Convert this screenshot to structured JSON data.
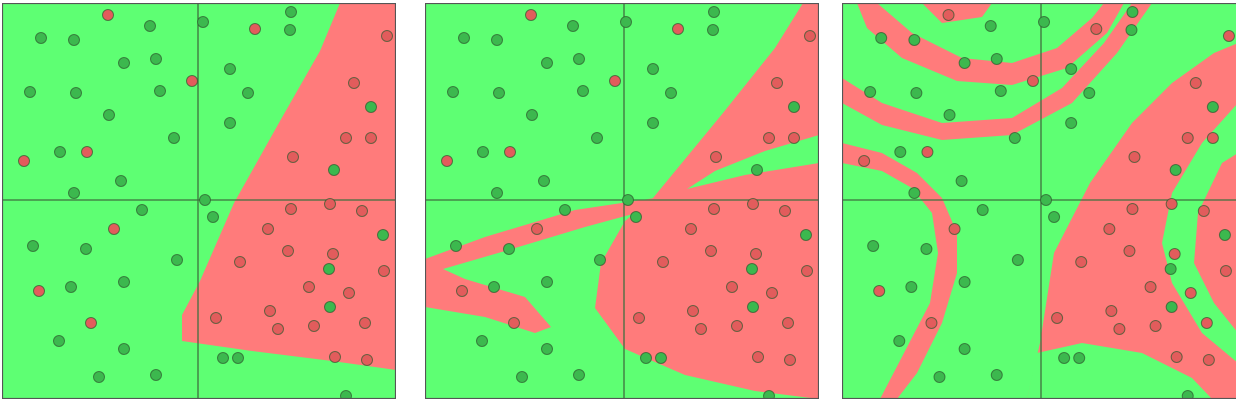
{
  "chart_data": [
    {
      "type": "scatter",
      "xlim": [
        -197,
        197
      ],
      "ylim": [
        -198,
        198
      ],
      "series": [
        {
          "color": "#e25c5c",
          "x": [
            -91,
            56,
            188,
            -7,
            155,
            147,
            172,
            -112,
            -175,
            94,
            92,
            131,
            163,
            -85,
            69,
            89,
            134,
            41,
            185,
            -160,
            110,
            150,
            17,
            71,
            -108,
            115,
            166,
            79,
            136,
            168
          ],
          "y": [
            186,
            172,
            165,
            120,
            118,
            63,
            63,
            49,
            40,
            44,
            -8,
            -3,
            -10,
            -28,
            -28,
            -50,
            -53,
            -61,
            -70,
            -90,
            -86,
            -92,
            -117,
            -110,
            -122,
            -125,
            -122,
            -128,
            -156,
            -159
          ]
        },
        {
          "color": "#3cb84e",
          "x": [
            -49,
            4,
            92,
            91,
            -158,
            -125,
            -75,
            -43,
            31,
            -169,
            -123,
            -39,
            49,
            172,
            -90,
            31,
            -25,
            -139,
            135,
            -78,
            -125,
            6,
            -57,
            14,
            184,
            -166,
            -113,
            -22,
            130,
            -75,
            -128,
            131,
            -140,
            -75,
            24,
            39,
            -100,
            -43,
            147
          ],
          "y": [
            175,
            179,
            189,
            171,
            163,
            161,
            138,
            142,
            132,
            109,
            108,
            110,
            108,
            94,
            86,
            78,
            63,
            49,
            31,
            20,
            8,
            1,
            -9,
            -16,
            -34,
            -45,
            -48,
            -59,
            -68,
            -81,
            -86,
            -106,
            -140,
            -148,
            -157,
            -157,
            -176,
            -174,
            -195
          ]
        }
      ]
    },
    {
      "type": "scatter",
      "xlim": [
        -197,
        197
      ],
      "ylim": [
        -198,
        198
      ],
      "series": [
        {
          "color": "#e25c5c",
          "x": [
            -91,
            56,
            188,
            -7,
            155,
            147,
            172,
            -112,
            -175,
            94,
            92,
            131,
            163,
            -85,
            69,
            89,
            134,
            41,
            185,
            -160,
            110,
            150,
            17,
            71,
            -108,
            115,
            166,
            79,
            136,
            168
          ],
          "y": [
            186,
            172,
            165,
            120,
            118,
            63,
            63,
            49,
            40,
            44,
            -8,
            -3,
            -10,
            -28,
            -28,
            -50,
            -53,
            -61,
            -70,
            -90,
            -86,
            -92,
            -117,
            -110,
            -122,
            -125,
            -122,
            -128,
            -156,
            -159
          ]
        },
        {
          "color": "#3cb84e",
          "x": [
            -49,
            4,
            92,
            91,
            -158,
            -125,
            -75,
            -43,
            31,
            -169,
            -123,
            -39,
            49,
            172,
            -90,
            31,
            -25,
            -139,
            135,
            -78,
            -125,
            6,
            -57,
            14,
            184,
            -166,
            -113,
            -22,
            130,
            -75,
            -128,
            131,
            -140,
            -75,
            24,
            39,
            -100,
            -43,
            147
          ],
          "y": [
            175,
            179,
            189,
            171,
            163,
            161,
            138,
            142,
            132,
            109,
            108,
            110,
            108,
            94,
            86,
            78,
            63,
            49,
            31,
            20,
            8,
            1,
            -9,
            -16,
            -34,
            -45,
            -48,
            -59,
            -68,
            -81,
            -86,
            -106,
            -140,
            -148,
            -157,
            -157,
            -176,
            -174,
            -195
          ]
        }
      ]
    },
    {
      "type": "scatter",
      "xlim": [
        -197,
        197
      ],
      "ylim": [
        -198,
        198
      ],
      "series": [
        {
          "color": "#e25c5c",
          "x": [
            -91,
            56,
            188,
            -7,
            155,
            147,
            172,
            -112,
            -175,
            94,
            92,
            131,
            163,
            -85,
            69,
            89,
            134,
            41,
            185,
            -160,
            110,
            150,
            17,
            71,
            -108,
            115,
            166,
            79,
            136,
            168
          ],
          "y": [
            186,
            172,
            165,
            120,
            118,
            63,
            63,
            49,
            40,
            44,
            -8,
            -3,
            -10,
            -28,
            -28,
            -50,
            -53,
            -61,
            -70,
            -90,
            -86,
            -92,
            -117,
            -110,
            -122,
            -125,
            -122,
            -128,
            -156,
            -159
          ]
        },
        {
          "color": "#3cb84e",
          "x": [
            -49,
            4,
            92,
            91,
            -158,
            -125,
            -75,
            -43,
            31,
            -169,
            -123,
            -39,
            49,
            172,
            -90,
            31,
            -25,
            -139,
            135,
            -78,
            -125,
            6,
            -57,
            14,
            184,
            -166,
            -113,
            -22,
            130,
            -75,
            -128,
            131,
            -140,
            -75,
            24,
            39,
            -100,
            -43,
            147
          ],
          "y": [
            175,
            179,
            189,
            171,
            163,
            161,
            138,
            142,
            132,
            109,
            108,
            110,
            108,
            94,
            86,
            78,
            63,
            49,
            31,
            20,
            8,
            1,
            -9,
            -16,
            -34,
            -45,
            -48,
            -59,
            -68,
            -81,
            -86,
            -106,
            -140,
            -148,
            -157,
            -157,
            -176,
            -174,
            -195
          ]
        }
      ]
    }
  ]
}
